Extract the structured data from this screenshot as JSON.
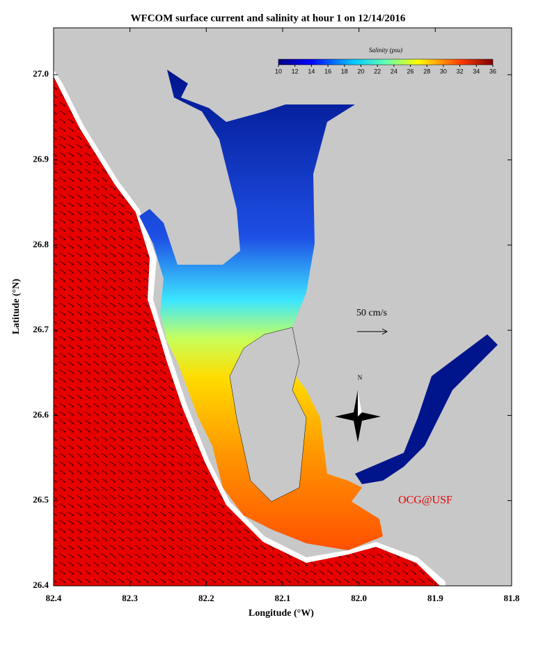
{
  "title": "WFCOM surface current and salinity at hour 1 on 12/14/2016",
  "map": {
    "xlabel": "Longitude (°W)",
    "ylabel": "Latitude (°N)",
    "xlim": [
      82.4,
      81.8
    ],
    "ylim": [
      26.4,
      27.055
    ],
    "xticks": [
      82.4,
      82.3,
      82.2,
      82.1,
      {
        "value": 82,
        "label": "82.0"
      },
      81.9,
      81.8
    ],
    "yticks": [
      26.4,
      26.5,
      26.6,
      26.7,
      26.8,
      26.9,
      {
        "value": 27,
        "label": "27.0"
      }
    ]
  },
  "colorbar": {
    "label": "Salinity (psu)",
    "lim": [
      10,
      36
    ],
    "ticks": [
      10,
      12,
      14,
      16,
      18,
      20,
      22,
      24,
      26,
      28,
      30,
      32,
      34,
      36
    ]
  },
  "scale_label": "50 cm/s",
  "north_label": "N",
  "credit": "OCG@USF"
}
